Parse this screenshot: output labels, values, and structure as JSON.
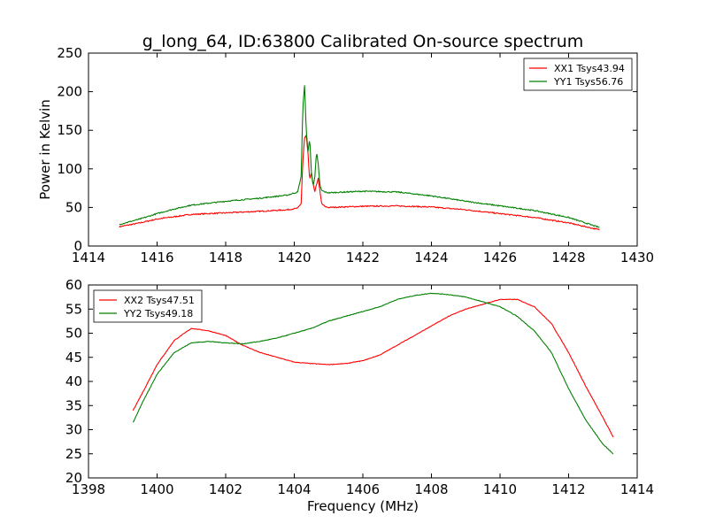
{
  "title": "g_long_64, ID:63800 Calibrated On-source spectrum",
  "colors": {
    "red": "#ff0000",
    "green": "#008000"
  },
  "chart_data": [
    {
      "type": "line",
      "ylabel": "Power in Kelvin",
      "xlabel": "",
      "xlim": [
        1414,
        1430
      ],
      "ylim": [
        0,
        250
      ],
      "xticks": [
        "1414",
        "1416",
        "1418",
        "1420",
        "1422",
        "1424",
        "1426",
        "1428",
        "1430"
      ],
      "yticks": [
        "0",
        "50",
        "100",
        "150",
        "200",
        "250"
      ],
      "legend_position": "top-right",
      "series": [
        {
          "name": "XX1 Tsys43.94",
          "color": "#ff0000",
          "x": [
            1414.9,
            1415.5,
            1416,
            1416.5,
            1417,
            1418,
            1419,
            1419.8,
            1420.1,
            1420.2,
            1420.25,
            1420.3,
            1420.35,
            1420.4,
            1420.45,
            1420.5,
            1420.55,
            1420.6,
            1420.65,
            1420.7,
            1420.75,
            1420.8,
            1420.9,
            1421,
            1422,
            1423,
            1424,
            1425,
            1426,
            1427,
            1428,
            1428.9
          ],
          "y": [
            25,
            30,
            35,
            38,
            41,
            43,
            45,
            47,
            49,
            55,
            110,
            140,
            143,
            120,
            85,
            95,
            80,
            70,
            80,
            88,
            70,
            55,
            51,
            50,
            51.5,
            52,
            50.5,
            47,
            42,
            37,
            30,
            21
          ]
        },
        {
          "name": "YY1 Tsys56.76",
          "color": "#008000",
          "x": [
            1414.9,
            1415.5,
            1416,
            1416.5,
            1417,
            1418,
            1419,
            1419.8,
            1420.1,
            1420.2,
            1420.25,
            1420.3,
            1420.35,
            1420.4,
            1420.45,
            1420.5,
            1420.55,
            1420.6,
            1420.65,
            1420.7,
            1420.75,
            1420.8,
            1420.9,
            1421,
            1422,
            1423,
            1424,
            1425,
            1426,
            1427,
            1428,
            1428.9
          ],
          "y": [
            28,
            35,
            42,
            48,
            53,
            58,
            62,
            66,
            70,
            90,
            180,
            208,
            150,
            122,
            140,
            95,
            78,
            90,
            122,
            105,
            78,
            72,
            70,
            69,
            71,
            70,
            65,
            58,
            52,
            46,
            37,
            24
          ]
        }
      ]
    },
    {
      "type": "line",
      "ylabel": "",
      "xlabel": "Frequency (MHz)",
      "xlim": [
        1398,
        1414
      ],
      "ylim": [
        20,
        60
      ],
      "xticks": [
        "1398",
        "1400",
        "1402",
        "1404",
        "1406",
        "1408",
        "1410",
        "1412",
        "1414"
      ],
      "yticks": [
        "20",
        "25",
        "30",
        "35",
        "40",
        "45",
        "50",
        "55",
        "60"
      ],
      "legend_position": "top-left",
      "series": [
        {
          "name": "XX2 Tsys47.51",
          "color": "#ff0000",
          "x": [
            1399.3,
            1399.6,
            1400,
            1400.5,
            1401,
            1401.5,
            1402,
            1402.5,
            1403,
            1403.5,
            1404,
            1404.5,
            1405,
            1405.5,
            1406,
            1406.5,
            1407,
            1407.5,
            1408,
            1408.5,
            1409,
            1409.5,
            1410,
            1410.5,
            1411,
            1411.5,
            1412,
            1412.5,
            1413,
            1413.3
          ],
          "y": [
            34,
            38,
            43.5,
            48.5,
            51,
            50.5,
            49.5,
            47.5,
            46,
            45,
            44,
            43.7,
            43.5,
            43.7,
            44.3,
            45.5,
            47.5,
            49.5,
            51.5,
            53.5,
            55,
            56,
            57,
            57,
            55.5,
            52,
            46,
            39,
            32.5,
            28.5
          ]
        },
        {
          "name": "YY2 Tsys49.18",
          "color": "#008000",
          "x": [
            1399.3,
            1399.6,
            1400,
            1400.5,
            1401,
            1401.5,
            1402,
            1402.5,
            1403,
            1403.5,
            1404,
            1404.5,
            1405,
            1405.5,
            1406,
            1406.5,
            1407,
            1407.5,
            1408,
            1408.5,
            1409,
            1409.5,
            1410,
            1410.5,
            1411,
            1411.5,
            1412,
            1412.5,
            1413,
            1413.3
          ],
          "y": [
            31.5,
            36,
            41.5,
            46,
            48,
            48.3,
            48,
            47.8,
            48.3,
            49,
            50,
            51,
            52.5,
            53.5,
            54.5,
            55.5,
            57,
            57.8,
            58.3,
            58,
            57.5,
            56.5,
            55.5,
            53.5,
            50.5,
            46,
            38.5,
            32,
            27,
            25
          ]
        }
      ]
    }
  ]
}
